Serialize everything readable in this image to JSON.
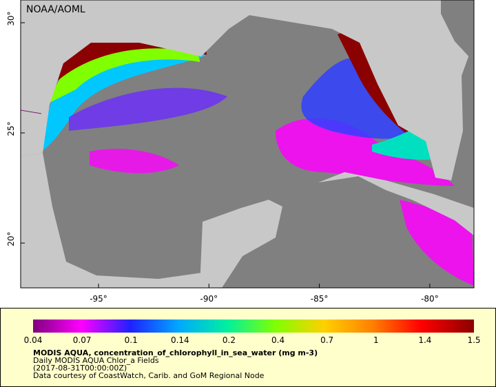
{
  "map": {
    "credit": "NOAA/AOML",
    "lat_labels": [
      "30°",
      "25°",
      "20°"
    ],
    "lon_labels": [
      "-95°",
      "-90°",
      "-85°",
      "-80°"
    ],
    "colorbar_labels": [
      "0.04",
      "0.07",
      "0.1",
      "0.14",
      "0.2",
      "0.4",
      "0.7",
      "1",
      "1.4",
      "1.5"
    ],
    "caption": {
      "title": "MODIS AQUA, concentration_of_chlorophyll_in_sea_water (mg m-3)",
      "lines": [
        "Daily MODIS AQUA Chlor_a Fields",
        "(2017-08-31T00:00:00Z)",
        "Data courtesy of CoastWatch, Carib. and GoM Regional Node"
      ]
    }
  }
}
